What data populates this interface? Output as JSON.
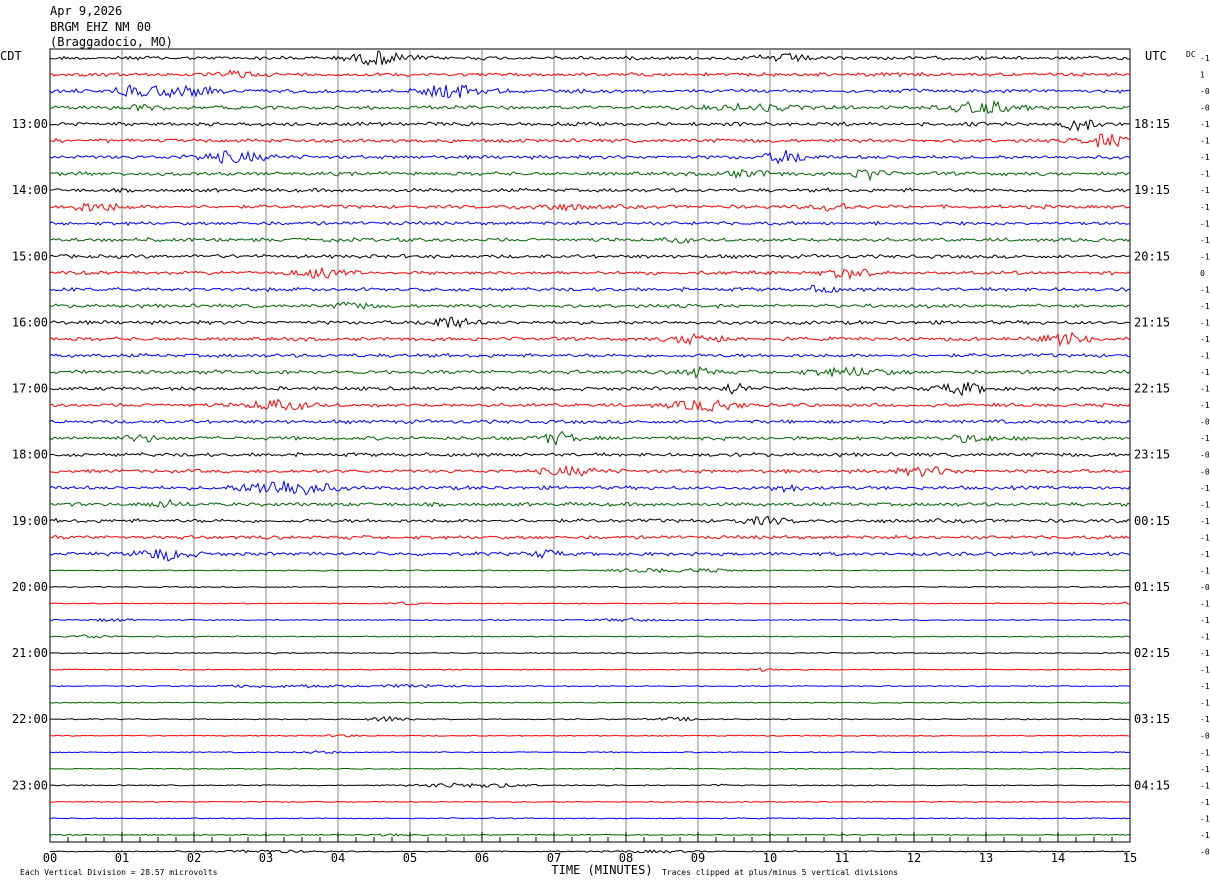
{
  "header": {
    "date": "Apr 9,2026",
    "station": "BRGM EHZ NM 00",
    "location": "(Braggadocio, MO)"
  },
  "chart_data": {
    "type": "line",
    "left_label": "CDT",
    "right_label": "UTC",
    "dc_label": "DC",
    "xlabel": "TIME (MINUTES)",
    "x_ticks": [
      "00",
      "01",
      "02",
      "03",
      "04",
      "05",
      "06",
      "07",
      "08",
      "09",
      "10",
      "11",
      "12",
      "13",
      "14",
      "15"
    ],
    "xlim": [
      0,
      15
    ],
    "trace_colors": [
      "#000000",
      "#ff0000",
      "#0000ff",
      "#006400"
    ],
    "left_hours": [
      "13:00",
      "14:00",
      "15:00",
      "16:00",
      "17:00",
      "18:00",
      "19:00",
      "20:00",
      "21:00",
      "22:00",
      "23:00"
    ],
    "right_hours": [
      "18:15",
      "19:15",
      "20:15",
      "21:15",
      "22:15",
      "23:15",
      "00:15",
      "01:15",
      "02:15",
      "03:15",
      "04:15"
    ],
    "dc_offsets": [
      "-1",
      "1",
      "-0",
      "-0",
      "-1",
      "-1",
      "-1",
      "-1",
      "-1",
      "-1",
      "-1",
      "-1",
      "-1",
      "0",
      "-1",
      "-1",
      "-1",
      "-1",
      "-1",
      "-1",
      "-1",
      "-1",
      "-0",
      "-1",
      "-0",
      "-0",
      "-1",
      "-1",
      "-1",
      "-1",
      "-1",
      "-1",
      "-0",
      "-1",
      "-1",
      "-1",
      "-1",
      "-1",
      "-1",
      "-1",
      "-1",
      "-0",
      "-1",
      "-1",
      "-1",
      "-1",
      "-1",
      "-1",
      "-0"
    ],
    "footer_left": "Each Vertical Division =   28.57 microvolts",
    "footer_right": "Traces clipped at plus/minus 5 vertical divisions"
  }
}
